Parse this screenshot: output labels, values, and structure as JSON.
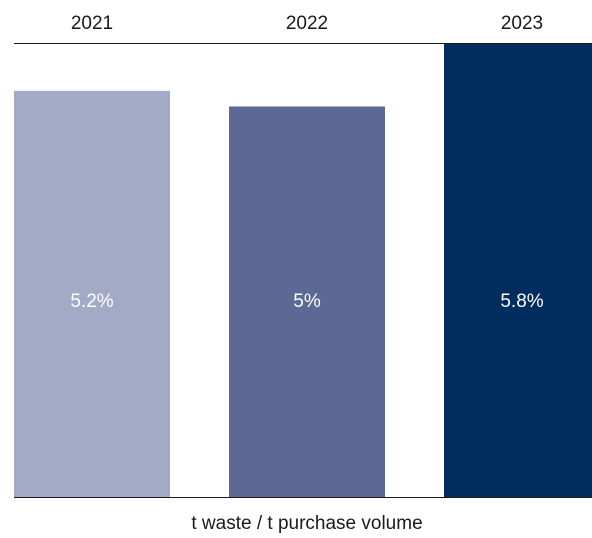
{
  "chart_data": {
    "type": "bar",
    "categories": [
      "2021",
      "2022",
      "2023"
    ],
    "values": [
      5.2,
      5.0,
      5.8
    ],
    "value_labels": [
      "5.2%",
      "5%",
      "5.8%"
    ],
    "colors": [
      "#a3aac6",
      "#5b6994",
      "#002d5e"
    ],
    "xlabel": "t waste / t purchase volume",
    "ylabel": "",
    "title": "",
    "ylim": [
      0,
      5.8
    ],
    "grid": false,
    "legend": "none"
  }
}
